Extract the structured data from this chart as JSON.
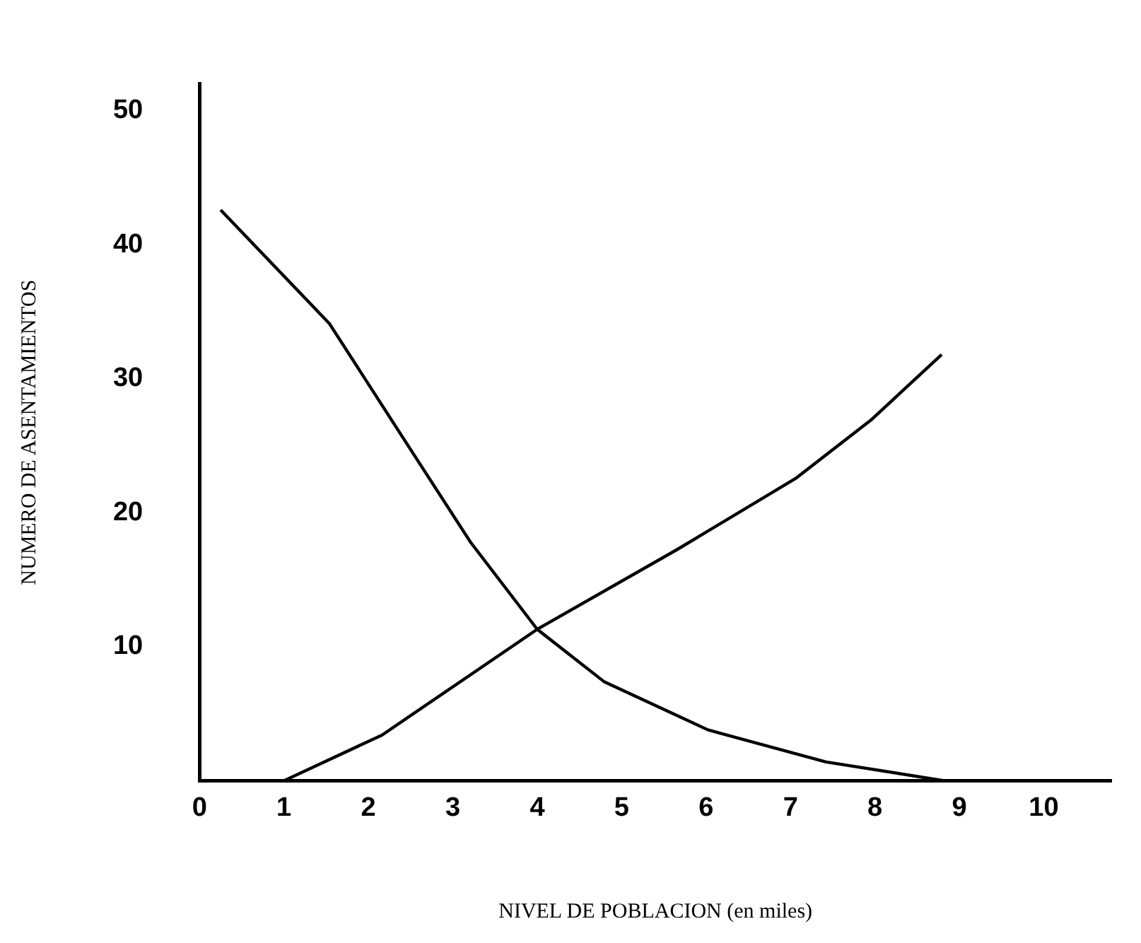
{
  "chart_data": {
    "type": "line",
    "xlabel": "NIVEL DE POBLACION (en miles)",
    "ylabel": "NUMERO DE ASENTAMIENTOS",
    "xlim": [
      0,
      10.8
    ],
    "xticks": [
      0,
      1,
      2,
      3,
      4,
      5,
      6,
      7,
      8,
      9,
      10
    ],
    "ylim": [
      0,
      52
    ],
    "yticks": [
      10,
      20,
      30,
      40,
      50
    ],
    "grid": false,
    "legend": false,
    "marker": "none",
    "line_style": "solid",
    "series": [
      {
        "color": "#000000",
        "x": [
          0.25,
          1.54,
          2.42,
          3.21,
          4.0,
          4.79,
          6.02,
          7.42,
          8.82
        ],
        "values": [
          42.6,
          34.1,
          25.5,
          17.8,
          11.3,
          7.4,
          3.8,
          1.4,
          0
        ]
      },
      {
        "color": "#000000",
        "x": [
          1.0,
          2.16,
          4.0,
          5.67,
          7.07,
          7.95,
          8.79
        ],
        "values": [
          0,
          3.4,
          11.3,
          17.3,
          22.6,
          26.9,
          31.8
        ]
      }
    ]
  }
}
